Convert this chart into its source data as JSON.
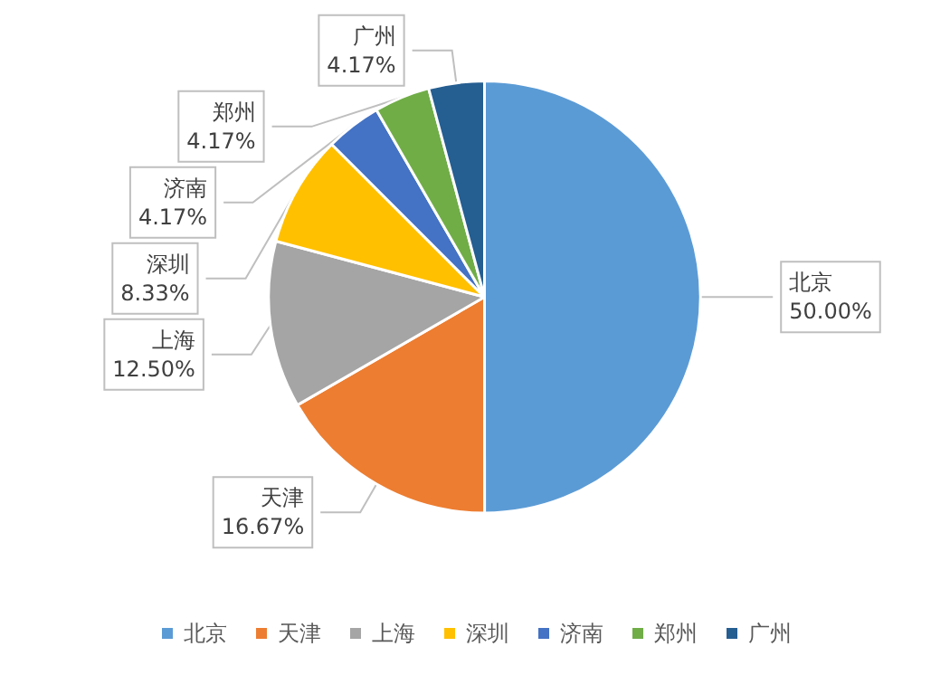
{
  "chart_data": {
    "type": "pie",
    "categories": [
      "北京",
      "天津",
      "上海",
      "深圳",
      "济南",
      "郑州",
      "广州"
    ],
    "values": [
      50.0,
      16.67,
      12.5,
      8.33,
      4.17,
      4.17,
      4.17
    ],
    "colors": [
      "#5b9bd5",
      "#ed7d31",
      "#a5a5a5",
      "#ffc000",
      "#4472c4",
      "#70ad47",
      "#255e91"
    ],
    "value_labels": [
      "50.00%",
      "16.67%",
      "12.50%",
      "8.33%",
      "4.17%",
      "4.17%",
      "4.17%"
    ],
    "legend": "bottom"
  }
}
